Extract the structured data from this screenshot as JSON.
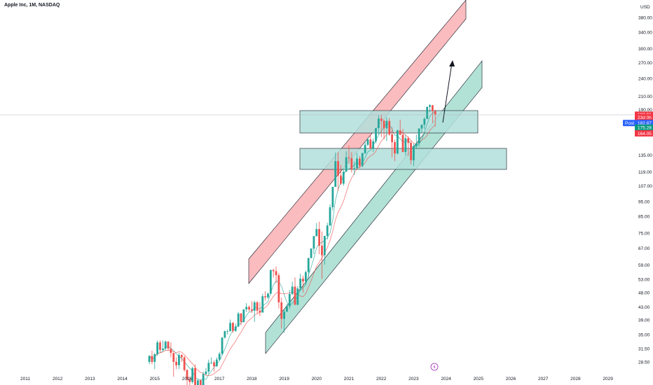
{
  "header": {
    "title": "Apple Inc, 1M, NASDAQ"
  },
  "price_axis": {
    "currency": "USD"
  },
  "colors": {
    "up": "#26a69a",
    "down": "#ef5350",
    "zone_fill": "#b2dfdb",
    "red_channel": "#f8a5aa",
    "green_channel": "#9fd9cc",
    "tag_red": "#f23645",
    "tag_green": "#089981",
    "tag_blue": "#2962ff"
  },
  "icons": {
    "event_marker": "lightning-icon"
  },
  "chart_data": {
    "type": "candlestick",
    "title": "Apple Inc, 1M, NASDAQ",
    "y_scale": "log",
    "ylim": [
      26,
      455
    ],
    "xlim": [
      "2010-10",
      "2029-12"
    ],
    "x_ticks": [
      "2011",
      "2012",
      "2013",
      "2014",
      "2015",
      "2016",
      "2017",
      "2018",
      "2019",
      "2020",
      "2021",
      "2022",
      "2023",
      "2024",
      "2025",
      "2026",
      "2027",
      "2028",
      "2029"
    ],
    "y_ticks": [
      "380.00",
      "340.00",
      "300.00",
      "270.00",
      "240.00",
      "210.00",
      "190.00",
      "135.00",
      "119.00",
      "107.00",
      "95.00",
      "85.00",
      "75.00",
      "67.00",
      "59.00",
      "53.00",
      "48.00",
      "43.00",
      "39.00",
      "35.00",
      "31.50",
      "28.50"
    ],
    "price_tags": [
      {
        "label": "182.91",
        "value": 182.91,
        "color": "#f23645"
      },
      {
        "label": "23d 0h",
        "value": 179.5,
        "color": "#f23645"
      },
      {
        "label": "Post",
        "value": 171.8,
        "color": "#2962ff",
        "side": "left"
      },
      {
        "label": "182.87",
        "value": 171.8,
        "color": "#2962ff"
      },
      {
        "label": "175.28",
        "value": 166.0,
        "color": "#089981"
      },
      {
        "label": "164.05",
        "value": 159.0,
        "color": "#f23645"
      }
    ],
    "candles": [
      {
        "t": "2014-11",
        "o": 28.5,
        "h": 30.0,
        "l": 28.0,
        "c": 29.8
      },
      {
        "t": "2014-12",
        "o": 29.8,
        "h": 31.0,
        "l": 28.0,
        "c": 28.5
      },
      {
        "t": "2015-01",
        "o": 28.5,
        "h": 30.5,
        "l": 27.0,
        "c": 30.2
      },
      {
        "t": "2015-02",
        "o": 30.2,
        "h": 33.5,
        "l": 29.8,
        "c": 33.0
      },
      {
        "t": "2015-03",
        "o": 33.0,
        "h": 33.5,
        "l": 30.5,
        "c": 31.2
      },
      {
        "t": "2015-04",
        "o": 31.2,
        "h": 33.5,
        "l": 31.0,
        "c": 31.5
      },
      {
        "t": "2015-05",
        "o": 31.5,
        "h": 33.5,
        "l": 31.0,
        "c": 33.2
      },
      {
        "t": "2015-06",
        "o": 33.2,
        "h": 33.3,
        "l": 31.0,
        "c": 31.5
      },
      {
        "t": "2015-07",
        "o": 31.5,
        "h": 33.0,
        "l": 29.5,
        "c": 30.5
      },
      {
        "t": "2015-08",
        "o": 30.5,
        "h": 30.5,
        "l": 25.5,
        "c": 28.5
      },
      {
        "t": "2015-09",
        "o": 28.5,
        "h": 29.5,
        "l": 27.0,
        "c": 27.8
      },
      {
        "t": "2015-10",
        "o": 27.8,
        "h": 30.5,
        "l": 27.0,
        "c": 30.0
      },
      {
        "t": "2015-11",
        "o": 30.0,
        "h": 30.2,
        "l": 28.5,
        "c": 29.5
      },
      {
        "t": "2015-12",
        "o": 29.5,
        "h": 29.8,
        "l": 26.5,
        "c": 26.8
      },
      {
        "t": "2016-01",
        "o": 26.8,
        "h": 27.0,
        "l": 23.5,
        "c": 25.0
      },
      {
        "t": "2016-02",
        "o": 25.0,
        "h": 25.5,
        "l": 23.5,
        "c": 24.5
      },
      {
        "t": "2016-03",
        "o": 24.5,
        "h": 27.5,
        "l": 24.2,
        "c": 27.2
      },
      {
        "t": "2016-04",
        "o": 27.2,
        "h": 28.0,
        "l": 23.5,
        "c": 23.6
      },
      {
        "t": "2016-05",
        "o": 23.6,
        "h": 25.0,
        "l": 22.5,
        "c": 24.8
      },
      {
        "t": "2016-06",
        "o": 24.8,
        "h": 25.0,
        "l": 23.2,
        "c": 23.9
      },
      {
        "t": "2016-07",
        "o": 23.9,
        "h": 26.5,
        "l": 23.5,
        "c": 26.0
      },
      {
        "t": "2016-08",
        "o": 26.0,
        "h": 27.2,
        "l": 25.8,
        "c": 26.5
      },
      {
        "t": "2016-09",
        "o": 26.5,
        "h": 29.0,
        "l": 26.0,
        "c": 28.3
      },
      {
        "t": "2016-10",
        "o": 28.3,
        "h": 29.5,
        "l": 28.0,
        "c": 28.4
      },
      {
        "t": "2016-11",
        "o": 28.4,
        "h": 28.8,
        "l": 26.5,
        "c": 27.6
      },
      {
        "t": "2016-12",
        "o": 27.6,
        "h": 29.5,
        "l": 27.4,
        "c": 29.0
      },
      {
        "t": "2017-01",
        "o": 29.0,
        "h": 30.7,
        "l": 28.7,
        "c": 30.3
      },
      {
        "t": "2017-02",
        "o": 30.3,
        "h": 34.4,
        "l": 30.0,
        "c": 34.2
      },
      {
        "t": "2017-03",
        "o": 34.2,
        "h": 36.1,
        "l": 34.0,
        "c": 35.9
      },
      {
        "t": "2017-04",
        "o": 35.9,
        "h": 36.4,
        "l": 35.0,
        "c": 35.9
      },
      {
        "t": "2017-05",
        "o": 35.9,
        "h": 39.2,
        "l": 35.8,
        "c": 38.2
      },
      {
        "t": "2017-06",
        "o": 38.2,
        "h": 38.5,
        "l": 35.5,
        "c": 36.0
      },
      {
        "t": "2017-07",
        "o": 36.0,
        "h": 38.0,
        "l": 35.7,
        "c": 37.2
      },
      {
        "t": "2017-08",
        "o": 37.2,
        "h": 41.5,
        "l": 37.0,
        "c": 41.0
      },
      {
        "t": "2017-09",
        "o": 41.0,
        "h": 41.2,
        "l": 37.5,
        "c": 38.5
      },
      {
        "t": "2017-10",
        "o": 38.5,
        "h": 42.0,
        "l": 38.3,
        "c": 42.3
      },
      {
        "t": "2017-11",
        "o": 42.3,
        "h": 44.3,
        "l": 41.5,
        "c": 43.1
      },
      {
        "t": "2017-12",
        "o": 43.1,
        "h": 43.5,
        "l": 41.6,
        "c": 42.3
      },
      {
        "t": "2018-01",
        "o": 42.3,
        "h": 45.0,
        "l": 41.2,
        "c": 41.9
      },
      {
        "t": "2018-02",
        "o": 41.9,
        "h": 45.2,
        "l": 38.5,
        "c": 44.6
      },
      {
        "t": "2018-03",
        "o": 44.6,
        "h": 45.1,
        "l": 41.0,
        "c": 41.9
      },
      {
        "t": "2018-04",
        "o": 41.9,
        "h": 44.7,
        "l": 40.2,
        "c": 41.3
      },
      {
        "t": "2018-05",
        "o": 41.3,
        "h": 47.6,
        "l": 41.3,
        "c": 46.7
      },
      {
        "t": "2018-06",
        "o": 46.7,
        "h": 48.5,
        "l": 45.2,
        "c": 46.3
      },
      {
        "t": "2018-07",
        "o": 46.3,
        "h": 48.0,
        "l": 45.8,
        "c": 47.6
      },
      {
        "t": "2018-08",
        "o": 47.6,
        "h": 57.0,
        "l": 47.5,
        "c": 56.9
      },
      {
        "t": "2018-09",
        "o": 56.9,
        "h": 57.4,
        "l": 53.8,
        "c": 56.4
      },
      {
        "t": "2018-10",
        "o": 56.4,
        "h": 58.4,
        "l": 51.5,
        "c": 54.7
      },
      {
        "t": "2018-11",
        "o": 54.7,
        "h": 55.6,
        "l": 42.6,
        "c": 44.6
      },
      {
        "t": "2018-12",
        "o": 44.6,
        "h": 46.2,
        "l": 36.6,
        "c": 39.4
      },
      {
        "t": "2019-01",
        "o": 39.4,
        "h": 42.2,
        "l": 35.5,
        "c": 41.6
      },
      {
        "t": "2019-02",
        "o": 41.6,
        "h": 43.9,
        "l": 41.5,
        "c": 43.3
      },
      {
        "t": "2019-03",
        "o": 43.3,
        "h": 49.0,
        "l": 42.4,
        "c": 47.5
      },
      {
        "t": "2019-04",
        "o": 47.5,
        "h": 52.1,
        "l": 47.1,
        "c": 50.2
      },
      {
        "t": "2019-05",
        "o": 50.2,
        "h": 53.8,
        "l": 43.7,
        "c": 43.8
      },
      {
        "t": "2019-06",
        "o": 43.8,
        "h": 50.4,
        "l": 43.7,
        "c": 49.5
      },
      {
        "t": "2019-07",
        "o": 49.5,
        "h": 55.3,
        "l": 48.7,
        "c": 53.3
      },
      {
        "t": "2019-08",
        "o": 53.3,
        "h": 54.5,
        "l": 48.1,
        "c": 52.2
      },
      {
        "t": "2019-09",
        "o": 52.2,
        "h": 56.6,
        "l": 51.1,
        "c": 56.0
      },
      {
        "t": "2019-10",
        "o": 56.0,
        "h": 62.4,
        "l": 53.8,
        "c": 62.2
      },
      {
        "t": "2019-11",
        "o": 62.2,
        "h": 67.0,
        "l": 62.3,
        "c": 66.8
      },
      {
        "t": "2019-12",
        "o": 66.8,
        "h": 73.5,
        "l": 64.1,
        "c": 73.4
      },
      {
        "t": "2020-01",
        "o": 73.4,
        "h": 81.0,
        "l": 73.2,
        "c": 77.4
      },
      {
        "t": "2020-02",
        "o": 77.4,
        "h": 81.8,
        "l": 64.1,
        "c": 68.3
      },
      {
        "t": "2020-03",
        "o": 68.3,
        "h": 76.0,
        "l": 53.2,
        "c": 63.6
      },
      {
        "t": "2020-04",
        "o": 63.6,
        "h": 73.6,
        "l": 59.2,
        "c": 73.5
      },
      {
        "t": "2020-05",
        "o": 73.5,
        "h": 81.1,
        "l": 71.6,
        "c": 79.5
      },
      {
        "t": "2020-06",
        "o": 79.5,
        "h": 93.1,
        "l": 79.3,
        "c": 91.2
      },
      {
        "t": "2020-07",
        "o": 91.2,
        "h": 106.4,
        "l": 89.1,
        "c": 106.3
      },
      {
        "t": "2020-08",
        "o": 106.3,
        "h": 137.6,
        "l": 107.9,
        "c": 129.0
      },
      {
        "t": "2020-09",
        "o": 129.0,
        "h": 137.9,
        "l": 103.1,
        "c": 115.8
      },
      {
        "t": "2020-10",
        "o": 115.8,
        "h": 125.4,
        "l": 107.7,
        "c": 108.9
      },
      {
        "t": "2020-11",
        "o": 108.9,
        "h": 121.9,
        "l": 107.3,
        "c": 119.1
      },
      {
        "t": "2020-12",
        "o": 119.1,
        "h": 138.8,
        "l": 120.0,
        "c": 132.7
      },
      {
        "t": "2021-01",
        "o": 132.7,
        "h": 145.1,
        "l": 126.4,
        "c": 131.9
      },
      {
        "t": "2021-02",
        "o": 131.9,
        "h": 137.9,
        "l": 118.4,
        "c": 121.3
      },
      {
        "t": "2021-03",
        "o": 121.3,
        "h": 128.7,
        "l": 116.2,
        "c": 122.2
      },
      {
        "t": "2021-04",
        "o": 122.2,
        "h": 137.1,
        "l": 122.5,
        "c": 131.5
      },
      {
        "t": "2021-05",
        "o": 131.5,
        "h": 134.1,
        "l": 122.2,
        "c": 124.6
      },
      {
        "t": "2021-06",
        "o": 124.6,
        "h": 137.4,
        "l": 123.1,
        "c": 137.0
      },
      {
        "t": "2021-07",
        "o": 137.0,
        "h": 150.0,
        "l": 135.8,
        "c": 145.9
      },
      {
        "t": "2021-08",
        "o": 145.9,
        "h": 153.5,
        "l": 144.5,
        "c": 151.8
      },
      {
        "t": "2021-09",
        "o": 151.8,
        "h": 157.3,
        "l": 141.3,
        "c": 141.5
      },
      {
        "t": "2021-10",
        "o": 141.5,
        "h": 153.2,
        "l": 138.3,
        "c": 149.8
      },
      {
        "t": "2021-11",
        "o": 149.8,
        "h": 165.7,
        "l": 147.5,
        "c": 165.3
      },
      {
        "t": "2021-12",
        "o": 165.3,
        "h": 182.1,
        "l": 157.8,
        "c": 177.6
      },
      {
        "t": "2022-01",
        "o": 177.6,
        "h": 182.9,
        "l": 154.7,
        "c": 174.8
      },
      {
        "t": "2022-02",
        "o": 174.8,
        "h": 176.6,
        "l": 152.0,
        "c": 165.1
      },
      {
        "t": "2022-03",
        "o": 165.1,
        "h": 179.6,
        "l": 150.1,
        "c": 174.6
      },
      {
        "t": "2022-04",
        "o": 174.6,
        "h": 178.5,
        "l": 156.0,
        "c": 157.7
      },
      {
        "t": "2022-05",
        "o": 157.7,
        "h": 166.5,
        "l": 132.6,
        "c": 148.8
      },
      {
        "t": "2022-06",
        "o": 148.8,
        "h": 151.7,
        "l": 129.0,
        "c": 136.7
      },
      {
        "t": "2022-07",
        "o": 136.7,
        "h": 163.6,
        "l": 135.7,
        "c": 162.5
      },
      {
        "t": "2022-08",
        "o": 162.5,
        "h": 176.2,
        "l": 157.1,
        "c": 157.2
      },
      {
        "t": "2022-09",
        "o": 157.2,
        "h": 164.3,
        "l": 138.0,
        "c": 138.2
      },
      {
        "t": "2022-10",
        "o": 138.2,
        "h": 157.5,
        "l": 134.4,
        "c": 153.3
      },
      {
        "t": "2022-11",
        "o": 153.3,
        "h": 155.5,
        "l": 134.4,
        "c": 148.0
      },
      {
        "t": "2022-12",
        "o": 148.0,
        "h": 150.9,
        "l": 125.9,
        "c": 129.9
      },
      {
        "t": "2023-01",
        "o": 129.9,
        "h": 147.2,
        "l": 124.2,
        "c": 144.3
      },
      {
        "t": "2023-02",
        "o": 144.3,
        "h": 157.4,
        "l": 141.3,
        "c": 147.4
      },
      {
        "t": "2023-03",
        "o": 147.4,
        "h": 165.0,
        "l": 143.9,
        "c": 164.9
      },
      {
        "t": "2023-04",
        "o": 164.9,
        "h": 169.9,
        "l": 159.8,
        "c": 169.7
      },
      {
        "t": "2023-05",
        "o": 169.7,
        "h": 179.4,
        "l": 164.3,
        "c": 177.3
      },
      {
        "t": "2023-06",
        "o": 177.3,
        "h": 194.5,
        "l": 176.9,
        "c": 194.0
      },
      {
        "t": "2023-07",
        "o": 194.0,
        "h": 198.2,
        "l": 186.6,
        "c": 196.5
      },
      {
        "t": "2023-08",
        "o": 196.5,
        "h": 196.7,
        "l": 171.9,
        "c": 187.9
      },
      {
        "t": "2023-09",
        "o": 187.9,
        "h": 189.9,
        "l": 167.6,
        "c": 182.91
      }
    ]
  }
}
